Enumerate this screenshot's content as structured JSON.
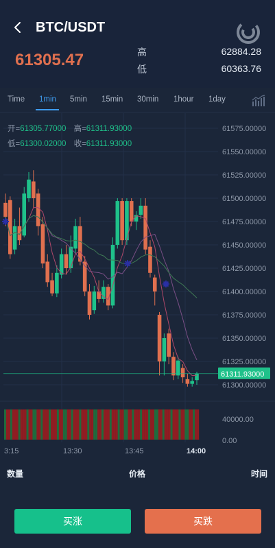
{
  "header": {
    "pair": "BTC/USDT",
    "price": "61305.47",
    "high_label": "高",
    "high_value": "62884.28",
    "low_label": "低",
    "low_value": "60363.76",
    "back_icon": "chevron-left-icon",
    "logo_icon": "circular-c-logo"
  },
  "tabs": [
    {
      "label": "Time"
    },
    {
      "label": "1min"
    },
    {
      "label": "5min"
    },
    {
      "label": "15min"
    },
    {
      "label": "30min"
    },
    {
      "label": "1hour"
    },
    {
      "label": "1day"
    }
  ],
  "active_tab": "1min",
  "ohlc": {
    "open_label": "开=",
    "open_value": "61305.77000",
    "high_label": "高=",
    "high_value": "61311.93000",
    "low_label": "低=",
    "low_value": "61300.02000",
    "close_label": "收=",
    "close_value": "61311.93000"
  },
  "chart_data": {
    "type": "candlestick",
    "y_ticks": [
      "61575.00000",
      "61550.00000",
      "61525.00000",
      "61500.00000",
      "61475.00000",
      "61450.00000",
      "61425.00000",
      "61400.00000",
      "61375.00000",
      "61350.00000",
      "61325.00000",
      "61300.00000"
    ],
    "ylim": [
      61292,
      61583
    ],
    "current_price": "61311.93000",
    "current_price_value": 61311.93,
    "volume_ticks": [
      "40000.00",
      "0.00"
    ],
    "x_ticks": [
      "3:15",
      "13:30",
      "13:45",
      "14:00"
    ],
    "candles": [
      {
        "o": 61495,
        "c": 61480,
        "h": 61505,
        "l": 61470
      },
      {
        "o": 61498,
        "c": 61440,
        "h": 61502,
        "l": 61435
      },
      {
        "o": 61445,
        "c": 61470,
        "h": 61478,
        "l": 61440
      },
      {
        "o": 61470,
        "c": 61455,
        "h": 61490,
        "l": 61450
      },
      {
        "o": 61460,
        "c": 61505,
        "h": 61512,
        "l": 61458
      },
      {
        "o": 61500,
        "c": 61520,
        "h": 61528,
        "l": 61496
      },
      {
        "o": 61518,
        "c": 61500,
        "h": 61530,
        "l": 61490
      },
      {
        "o": 61505,
        "c": 61470,
        "h": 61510,
        "l": 61460
      },
      {
        "o": 61472,
        "c": 61430,
        "h": 61480,
        "l": 61425
      },
      {
        "o": 61432,
        "c": 61410,
        "h": 61440,
        "l": 61405
      },
      {
        "o": 61412,
        "c": 61398,
        "h": 61420,
        "l": 61395
      },
      {
        "o": 61398,
        "c": 61420,
        "h": 61428,
        "l": 61394
      },
      {
        "o": 61418,
        "c": 61440,
        "h": 61446,
        "l": 61414
      },
      {
        "o": 61440,
        "c": 61425,
        "h": 61450,
        "l": 61418
      },
      {
        "o": 61425,
        "c": 61448,
        "h": 61460,
        "l": 61420
      },
      {
        "o": 61446,
        "c": 61470,
        "h": 61478,
        "l": 61440
      },
      {
        "o": 61470,
        "c": 61432,
        "h": 61480,
        "l": 61428
      },
      {
        "o": 61432,
        "c": 61400,
        "h": 61438,
        "l": 61395
      },
      {
        "o": 61400,
        "c": 61375,
        "h": 61408,
        "l": 61370
      },
      {
        "o": 61380,
        "c": 61400,
        "h": 61406,
        "l": 61376
      },
      {
        "o": 61400,
        "c": 61392,
        "h": 61412,
        "l": 61388
      },
      {
        "o": 61392,
        "c": 61405,
        "h": 61412,
        "l": 61388
      },
      {
        "o": 61405,
        "c": 61385,
        "h": 61408,
        "l": 61380
      },
      {
        "o": 61385,
        "c": 61450,
        "h": 61458,
        "l": 61382
      },
      {
        "o": 61450,
        "c": 61497,
        "h": 61500,
        "l": 61446
      },
      {
        "o": 61497,
        "c": 61455,
        "h": 61500,
        "l": 61450
      },
      {
        "o": 61455,
        "c": 61497,
        "h": 61500,
        "l": 61450
      },
      {
        "o": 61497,
        "c": 61475,
        "h": 61500,
        "l": 61470
      },
      {
        "o": 61475,
        "c": 61482,
        "h": 61486,
        "l": 61466
      },
      {
        "o": 61482,
        "c": 61492,
        "h": 61500,
        "l": 61478
      },
      {
        "o": 61492,
        "c": 61445,
        "h": 61500,
        "l": 61440
      },
      {
        "o": 61448,
        "c": 61420,
        "h": 61455,
        "l": 61415
      },
      {
        "o": 61415,
        "c": 61400,
        "h": 61418,
        "l": 61385
      },
      {
        "o": 61375,
        "c": 61325,
        "h": 61378,
        "l": 61310
      },
      {
        "o": 61325,
        "c": 61350,
        "h": 61355,
        "l": 61310
      },
      {
        "o": 61355,
        "c": 61330,
        "h": 61360,
        "l": 61322
      },
      {
        "o": 61330,
        "c": 61310,
        "h": 61335,
        "l": 61305
      },
      {
        "o": 61310,
        "c": 61326,
        "h": 61330,
        "l": 61306
      },
      {
        "o": 61318,
        "c": 61308,
        "h": 61322,
        "l": 61302
      },
      {
        "o": 61306,
        "c": 61301,
        "h": 61312,
        "l": 61298
      },
      {
        "o": 61301,
        "c": 61304,
        "h": 61308,
        "l": 61298
      },
      {
        "o": 61305,
        "c": 61312,
        "h": 61314,
        "l": 61300
      }
    ]
  },
  "bottom": {
    "qty_label": "数量",
    "price_label": "价格",
    "time_label": "时间"
  },
  "buttons": {
    "buy_label": "买涨",
    "sell_label": "买跌"
  },
  "colors": {
    "up": "#1fc18a",
    "down": "#e0704f",
    "accent": "#3f9cf0",
    "background": "#1b2639"
  }
}
